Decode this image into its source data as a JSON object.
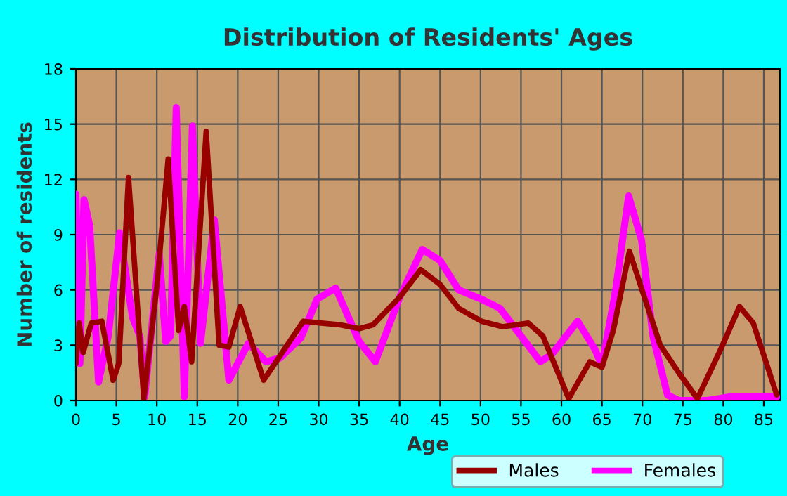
{
  "chart_data": {
    "type": "line",
    "title": "Distribution of Residents' Ages",
    "xlabel": "Age",
    "ylabel": "Number of residents",
    "xlim": [
      0,
      87
    ],
    "xticks": [
      0,
      5,
      10,
      15,
      20,
      25,
      30,
      35,
      40,
      45,
      50,
      55,
      60,
      65,
      70,
      75,
      80,
      85
    ],
    "ylim": [
      0,
      18
    ],
    "yticks": [
      0,
      3,
      6,
      9,
      12,
      15,
      18
    ],
    "grid": true,
    "legend": "bottom right",
    "series": [
      {
        "name": "Males",
        "color": "#990000",
        "x": [
          0,
          0.4,
          0.9,
          1.9,
          3.2,
          4.6,
          5.3,
          6.5,
          8.4,
          10,
          11.4,
          12.7,
          13.4,
          14.3,
          16.1,
          17.7,
          18.9,
          20.3,
          23.2,
          28.1,
          30.3,
          32.7,
          35,
          36.7,
          40,
          42.6,
          45,
          47.3,
          50.1,
          52.7,
          55.9,
          57.7,
          60.9,
          63.5,
          65,
          66.4,
          68.4,
          70.4,
          72.2,
          74.5,
          76.8,
          79.7,
          82,
          83.7,
          86.6
        ],
        "values": [
          2,
          4.2,
          2.6,
          4.2,
          4.3,
          1.1,
          2,
          12.1,
          0.1,
          6.2,
          13.1,
          3.8,
          5.1,
          2.1,
          14.6,
          3,
          2.9,
          5.1,
          1.1,
          4.3,
          4.2,
          4.1,
          3.9,
          4.1,
          5.6,
          7.1,
          6.3,
          5,
          4.3,
          4,
          4.2,
          3.5,
          0.1,
          2.1,
          1.8,
          3.8,
          8.1,
          5.4,
          3,
          1.5,
          0.1,
          2.8,
          5.1,
          4.2,
          0.3
        ]
      },
      {
        "name": "Females",
        "color": "#ff00ff",
        "x": [
          0,
          0.5,
          1,
          1.7,
          2.8,
          4,
          5.4,
          7,
          7.9,
          8.5,
          10.3,
          11.1,
          11.7,
          12.4,
          13.4,
          14.4,
          15.4,
          17.1,
          18.9,
          21.3,
          23.5,
          25.2,
          27.8,
          29.8,
          32.1,
          35,
          37,
          40,
          42.8,
          45,
          47.3,
          50.1,
          52.4,
          55,
          57.4,
          58.8,
          62,
          64.1,
          65,
          66.7,
          68.3,
          69.9,
          71.3,
          73.1,
          74.5,
          78,
          80.9,
          86.6
        ],
        "values": [
          11.2,
          2,
          10.9,
          9.5,
          1,
          3.5,
          9.1,
          4.5,
          3.5,
          0.2,
          8,
          3.2,
          3.5,
          15.9,
          0.2,
          14.9,
          3.1,
          9.8,
          1.1,
          3.1,
          2.1,
          2.3,
          3.4,
          5.5,
          6.1,
          3.2,
          2.1,
          5.6,
          8.2,
          7.6,
          6,
          5.5,
          5,
          3.5,
          2.1,
          2.5,
          4.3,
          2.8,
          1.9,
          6,
          11.1,
          8.7,
          3.5,
          0.3,
          0,
          0,
          0.2,
          0.2
        ]
      }
    ]
  }
}
